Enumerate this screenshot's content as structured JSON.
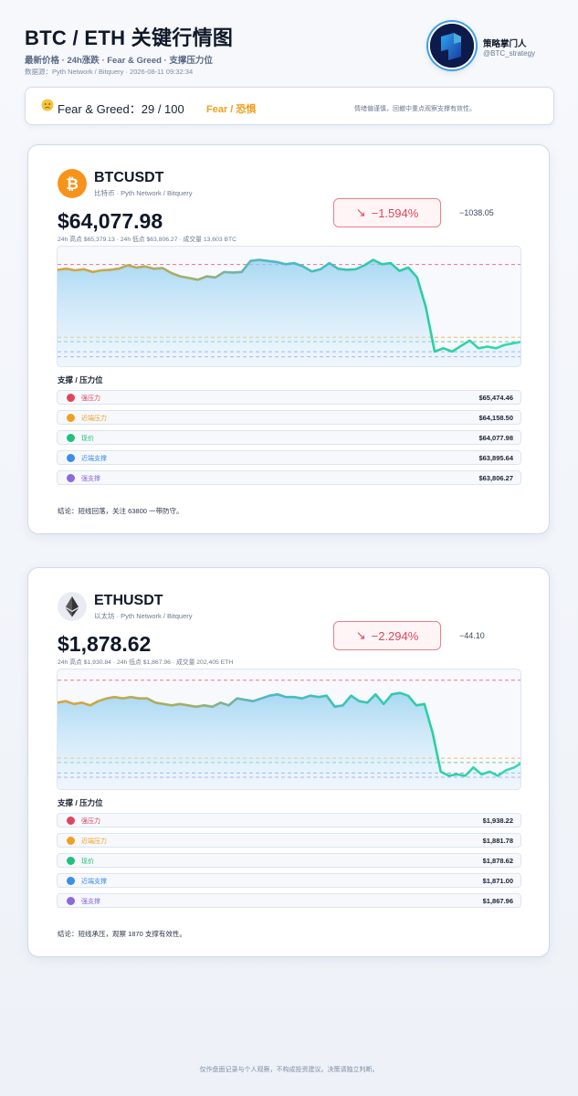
{
  "header": {
    "title": "BTC / ETH 关键行情图",
    "subtitle": "最新价格 · 24h涨跌 · Fear & Greed · 支撑压力位",
    "source": "数据源：Pyth Network / Bitquery · 2026-08-11 09:32:34"
  },
  "brand": {
    "name": "策略掌门人",
    "handle": "@BTC_strategy"
  },
  "fear_greed": {
    "label": "Fear & Greed：29 / 100",
    "value": 29,
    "max": 100,
    "level": "Fear / 恐惧",
    "note": "情绪偏谨慎，回撤中重点观察支撑有效性。",
    "level_color": "#f0a020"
  },
  "levels_title": "支撑 / 压力位",
  "level_colors": {
    "strong_resistance": "#e0455c",
    "near_resistance": "#f0a020",
    "current": "#22c07a",
    "near_support": "#3a8ee8",
    "strong_support": "#8a6ae0"
  },
  "btc": {
    "pair": "BTCUSDT",
    "sub": "比特币 · Pyth Network / Bitquery",
    "price": "$64,077.98",
    "stats": "24h 高点 $65,379.13 · 24h 低点 $63,806.27 · 成交量 13,603 BTC",
    "change_pct": "−1.594%",
    "change_abs": "−1038.05",
    "icon_color": "#f7931a",
    "levels": [
      {
        "key": "strong_resistance",
        "name": "强压力",
        "value": "$65,474.46"
      },
      {
        "key": "near_resistance",
        "name": "近端压力",
        "value": "$64,158.50"
      },
      {
        "key": "current",
        "name": "现价",
        "value": "$64,077.98"
      },
      {
        "key": "near_support",
        "name": "近端支撑",
        "value": "$63,895.64"
      },
      {
        "key": "strong_support",
        "name": "强支撑",
        "value": "$63,806.27"
      }
    ],
    "conclusion": "结论：短线回落，关注 63800 一带防守。"
  },
  "eth": {
    "pair": "ETHUSDT",
    "sub": "以太坊 · Pyth Network / Bitquery",
    "price": "$1,878.62",
    "stats": "24h 高点 $1,930.84 · 24h 低点 $1,867.96 · 成交量 202,405 ETH",
    "change_pct": "−2.294%",
    "change_abs": "−44.10",
    "icon_color": "#e8ecf2",
    "levels": [
      {
        "key": "strong_resistance",
        "name": "强压力",
        "value": "$1,938.22"
      },
      {
        "key": "near_resistance",
        "name": "近端压力",
        "value": "$1,881.78"
      },
      {
        "key": "current",
        "name": "现价",
        "value": "$1,878.62"
      },
      {
        "key": "near_support",
        "name": "近端支撑",
        "value": "$1,871.00"
      },
      {
        "key": "strong_support",
        "name": "强支撑",
        "value": "$1,867.96"
      }
    ],
    "conclusion": "结论：短线承压，观察 1870 支撑有效性。"
  },
  "footer": "仅作盘面记录与个人观察，不构成投资建议。决策请独立判断。",
  "chart_data": [
    {
      "type": "area",
      "series": [
        {
          "values": [
            65380,
            65400,
            65370,
            65390,
            65340,
            65370,
            65380,
            65400,
            65460,
            65420,
            65440,
            65400,
            65410,
            65320,
            65260,
            65230,
            65200,
            65260,
            65240,
            65340,
            65330,
            65340,
            65540,
            65560,
            65540,
            65520,
            65480,
            65500,
            65440,
            65350,
            65390,
            65500,
            65400,
            65380,
            65390,
            65460,
            65560,
            65480,
            65500,
            65360,
            65420,
            65240,
            64700,
            63900,
            63960,
            63900,
            64000,
            64100,
            63960,
            63990,
            63960,
            64020,
            64050,
            64077.98
          ]
        }
      ],
      "levels": [
        65474.46,
        64158.5,
        64077.98,
        63895.64,
        63806.27
      ],
      "ylim": [
        63700,
        65700
      ]
    },
    {
      "type": "area",
      "series": [
        {
          "values": [
            1922,
            1923,
            1921,
            1922,
            1920,
            1923,
            1925,
            1926,
            1925,
            1926,
            1925,
            1925,
            1922,
            1921,
            1920,
            1921,
            1920,
            1919,
            1920,
            1919,
            1922,
            1920,
            1925,
            1924,
            1923,
            1925,
            1927,
            1928,
            1926,
            1926,
            1925,
            1927,
            1926,
            1927,
            1919,
            1920,
            1927,
            1923,
            1922,
            1928,
            1921,
            1928,
            1929,
            1927,
            1920,
            1921,
            1900,
            1872,
            1869,
            1870,
            1869,
            1875,
            1870,
            1872,
            1869,
            1873,
            1875,
            1878.62
          ]
        }
      ],
      "levels": [
        1938.22,
        1881.78,
        1878.62,
        1871.0,
        1867.96
      ],
      "ylim": [
        1862,
        1942
      ]
    }
  ]
}
